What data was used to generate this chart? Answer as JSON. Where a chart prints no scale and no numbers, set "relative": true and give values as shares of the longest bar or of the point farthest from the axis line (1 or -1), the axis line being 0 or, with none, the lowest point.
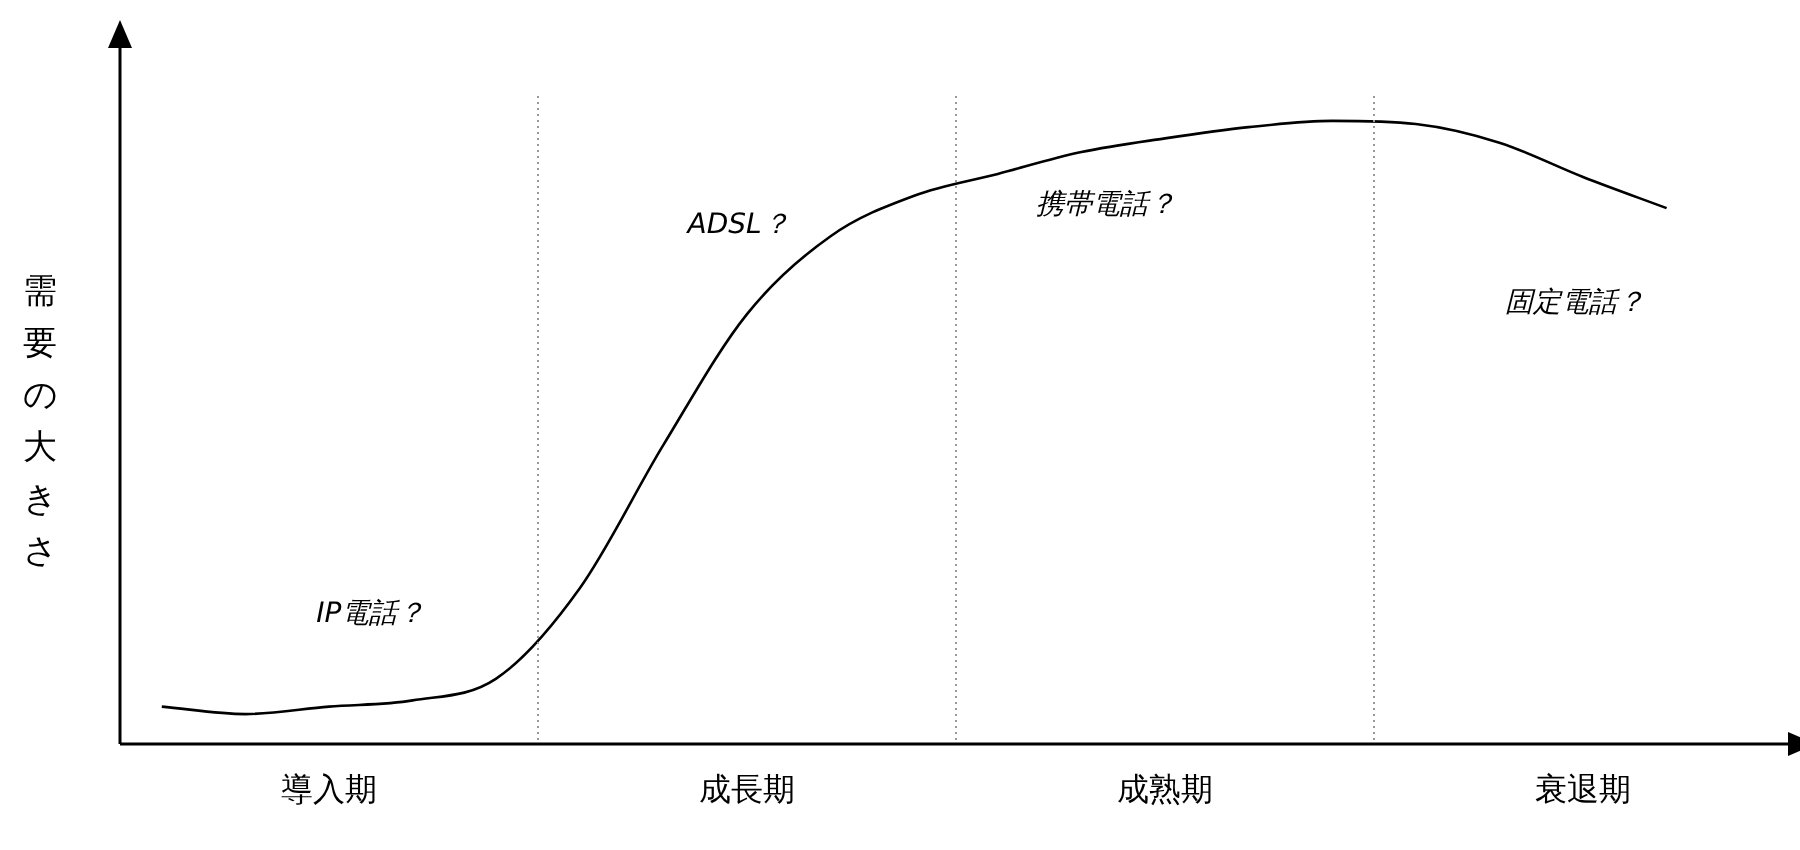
{
  "chart_data": {
    "type": "line",
    "relative": true,
    "ylabel": "需要の大きさ",
    "categories": [
      null,
      null,
      null,
      null,
      null,
      null,
      null,
      null,
      null,
      null,
      null,
      null,
      null,
      null,
      null,
      null,
      null,
      null,
      null,
      null
    ],
    "series": [
      {
        "color": "#000000",
        "values": [
          0.06,
          0.048,
          0.06,
          0.07,
          0.105,
          0.25,
          0.48,
          0.69,
          0.815,
          0.88,
          0.915,
          0.95,
          0.972,
          0.99,
          1.0,
          0.995,
          0.965,
          0.91,
          0.86,
          null
        ]
      }
    ],
    "annotations": [
      "導入期",
      "成長期",
      "成熟期",
      "衰退期",
      "IP電話？",
      "ADSL？",
      "携帯電話？",
      "固定電話？"
    ],
    "grid": false,
    "legend": false,
    "marker": "none",
    "line_style": "solid",
    "tick_labels": false
  }
}
